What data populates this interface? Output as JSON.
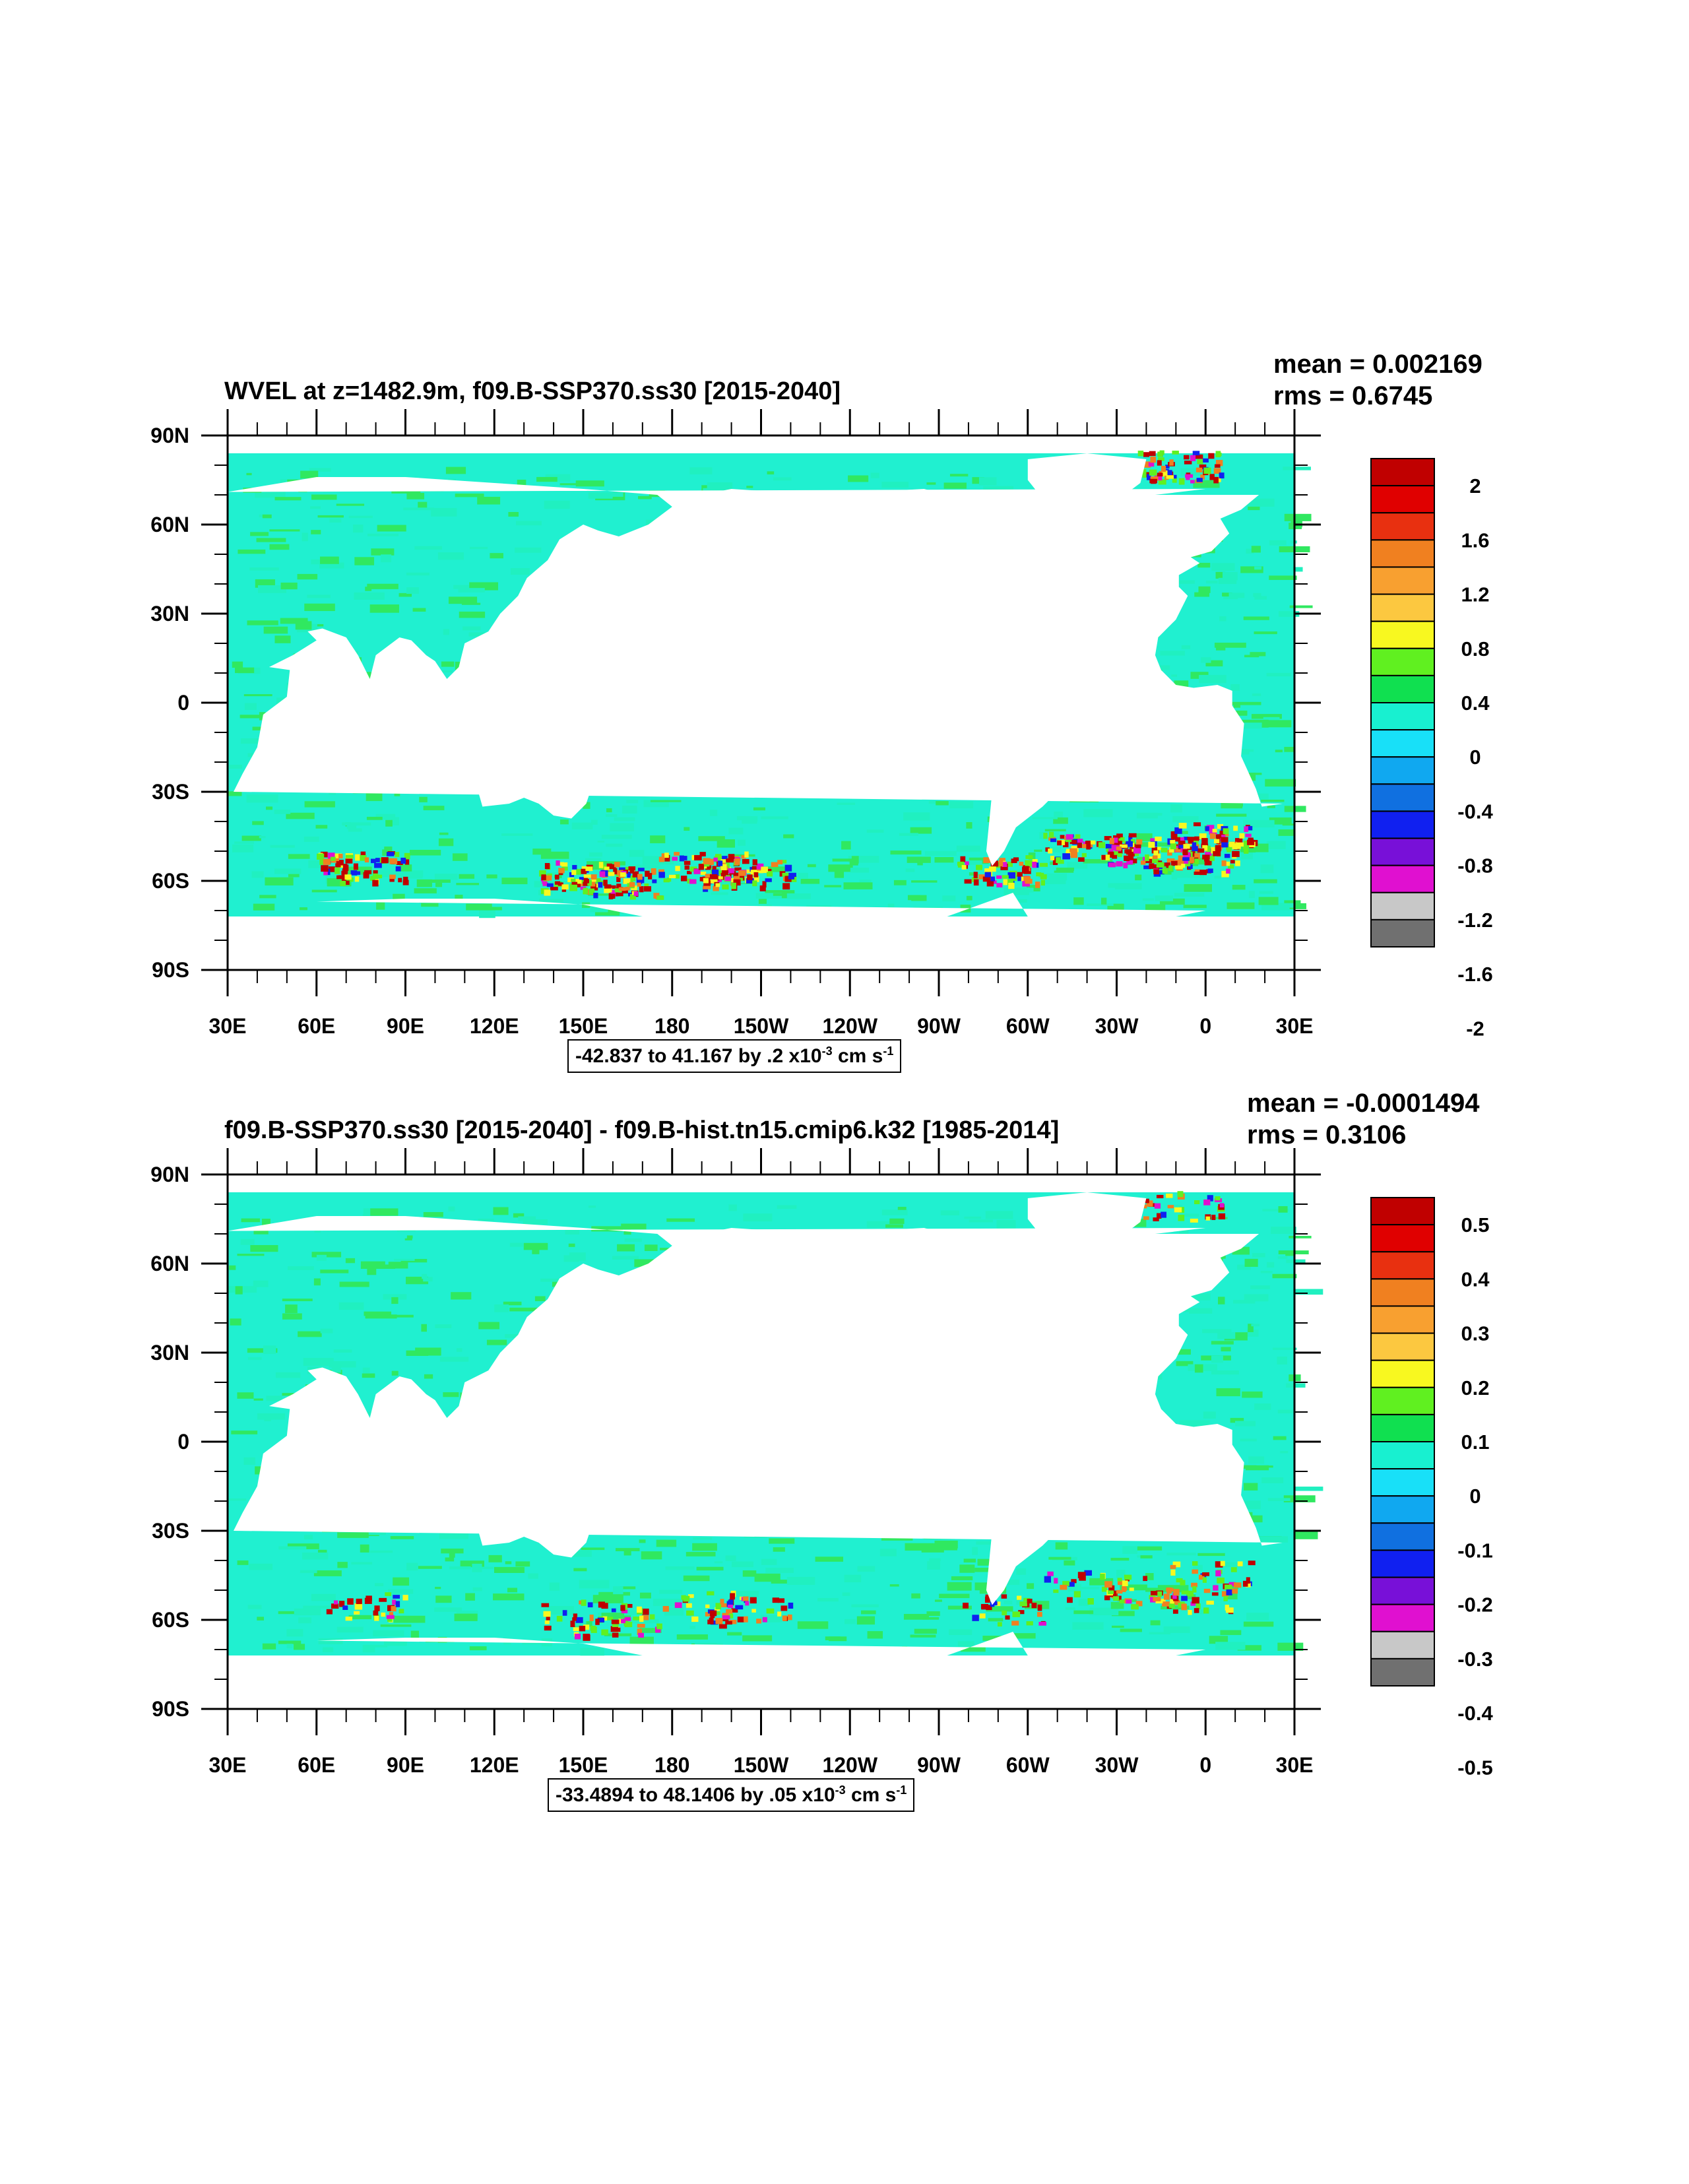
{
  "panels": [
    {
      "title": "WVEL at z=1482.9m, f09.B-SSP370.ss30 [2015-2040]",
      "mean": "mean = 0.002169",
      "rms": "rms = 0.6745",
      "range_text": "-42.837 to 41.167 by .2 x10",
      "range_exp": "-3",
      "range_unit": " cm s",
      "range_unit_exp": "-1",
      "colorbar_labels": [
        "2",
        "1.6",
        "1.2",
        "0.8",
        "0.4",
        "0",
        "-0.4",
        "-0.8",
        "-1.2",
        "-1.6",
        "-2"
      ],
      "hotspots": "strong"
    },
    {
      "title": "f09.B-SSP370.ss30 [2015-2040] - f09.B-hist.tn15.cmip6.k32 [1985-2014]",
      "mean": "mean = -0.0001494",
      "rms": "rms = 0.3106",
      "range_text": "-33.4894 to 48.1406 by .05 x10",
      "range_exp": "-3",
      "range_unit": " cm s",
      "range_unit_exp": "-1",
      "colorbar_labels": [
        "0.5",
        "0.4",
        "0.3",
        "0.2",
        "0.1",
        "0",
        "-0.1",
        "-0.2",
        "-0.3",
        "-0.4",
        "-0.5"
      ],
      "hotspots": "weak"
    }
  ],
  "lat_labels": [
    "90N",
    "60N",
    "30N",
    "0",
    "30S",
    "60S",
    "90S"
  ],
  "lon_labels": [
    "30E",
    "60E",
    "90E",
    "120E",
    "150E",
    "180",
    "150W",
    "120W",
    "90W",
    "60W",
    "30W",
    "0",
    "30E"
  ],
  "colorbar_colors": [
    "#c8101a",
    "#e0180f",
    "#ec3a10",
    "#f07d14",
    "#f7a12a",
    "#fbc534",
    "#f6f51a",
    "#5ef023",
    "#14e35a",
    "#19f2c6",
    "#1ad8f5",
    "#15a9f0",
    "#1570e6",
    "#1e1ef2",
    "#7a12d8",
    "#e40fd0",
    "#c6c6c6",
    "#6e6e6e"
  ],
  "colorbar_fill_colors": [
    "#c00000",
    "#e00000",
    "#e83010",
    "#f08020",
    "#f8a030",
    "#fcc840",
    "#f8f820",
    "#60f020",
    "#10e050",
    "#18f0d0",
    "#18e0f8",
    "#10a8f0",
    "#1070e0",
    "#1020f0",
    "#7810d8",
    "#e010d0",
    "#c8c8c8",
    "#707070"
  ]
}
